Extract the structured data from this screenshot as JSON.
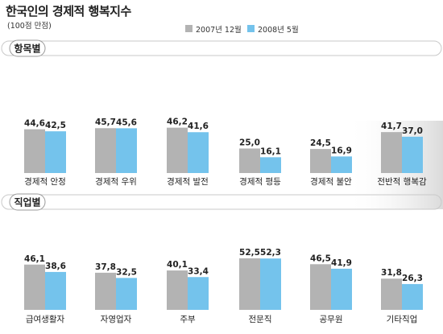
{
  "title": "한국인의 경제적 행복지수",
  "subtitle": "(100점 만점)",
  "colors": {
    "series1": "#b3b3b3",
    "series2": "#74c3ec"
  },
  "chart_data": [
    {
      "type": "bar",
      "section_label": "항목별",
      "categories": [
        "경제적 안정",
        "경제적 우위",
        "경제적 발전",
        "경제적 평등",
        "경제적 불안",
        "전반적 행복감"
      ],
      "series": [
        {
          "name": "2007년 12월",
          "values": [
            44.6,
            45.7,
            46.2,
            25.0,
            24.5,
            41.7
          ]
        },
        {
          "name": "2008년 5월",
          "values": [
            42.5,
            45.6,
            41.6,
            16.1,
            16.9,
            37.0
          ]
        }
      ],
      "value_labels": [
        [
          "44,6",
          "45,7",
          "46,2",
          "25,0",
          "24,5",
          "41,7"
        ],
        [
          "42,5",
          "45,6",
          "41,6",
          "16,1",
          "16,9",
          "37,0"
        ]
      ],
      "ylim": [
        0,
        100
      ]
    },
    {
      "type": "bar",
      "section_label": "직업별",
      "categories": [
        "급여생활자",
        "자영업자",
        "주부",
        "전문직",
        "공무원",
        "기타직업"
      ],
      "series": [
        {
          "name": "2007년 12월",
          "values": [
            46.1,
            37.8,
            40.1,
            52.5,
            46.5,
            31.8
          ]
        },
        {
          "name": "2008년 5월",
          "values": [
            38.6,
            32.5,
            33.4,
            52.3,
            41.9,
            26.3
          ]
        }
      ],
      "value_labels": [
        [
          "46,1",
          "37,8",
          "40,1",
          "52,5",
          "46,5",
          "31,8"
        ],
        [
          "38,6",
          "32,5",
          "33,4",
          "52,3",
          "41,9",
          "26,3"
        ]
      ],
      "ylim": [
        0,
        100
      ]
    }
  ]
}
